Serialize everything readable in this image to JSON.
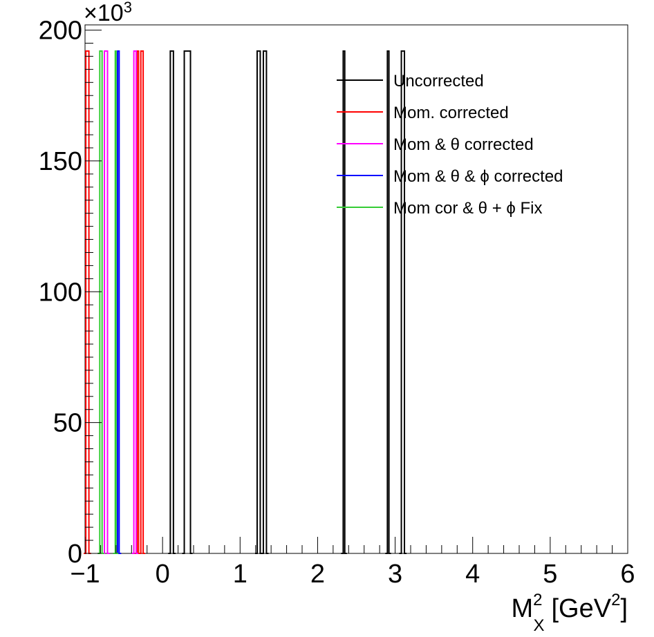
{
  "chart_data": {
    "type": "histogram",
    "title": "",
    "xlabel": {
      "main": "M",
      "sup": "2",
      "sub": "X",
      "unit_open": "[GeV",
      "unit_sup": "2",
      "unit_close": "]"
    },
    "ylabel": "",
    "y_multiplier": {
      "base": "×10",
      "exp": "3"
    },
    "xlim": [
      -1,
      6
    ],
    "ylim": [
      0,
      202
    ],
    "x_ticks": [
      -1,
      0,
      1,
      2,
      3,
      4,
      5,
      6
    ],
    "x_tick_labels": [
      "−1",
      "0",
      "1",
      "2",
      "3",
      "4",
      "5",
      "6"
    ],
    "y_ticks": [
      0,
      50,
      100,
      150,
      200
    ],
    "y_tick_labels": [
      "0",
      "50",
      "100",
      "150",
      "200"
    ],
    "legend_position": "top-right",
    "series": [
      {
        "name": "Uncorrected",
        "color": "#000000",
        "spikes": [
          [
            0.1,
            0.14,
            192
          ],
          [
            0.28,
            0.36,
            192
          ],
          [
            1.22,
            1.26,
            192
          ],
          [
            1.3,
            1.34,
            192
          ],
          [
            2.33,
            2.35,
            192
          ],
          [
            2.9,
            2.92,
            192
          ],
          [
            3.08,
            3.12,
            192
          ]
        ]
      },
      {
        "name": "Mom. corrected",
        "color": "#ff0000",
        "spikes": [
          [
            -0.99,
            -0.95,
            192
          ],
          [
            -0.33,
            -0.31,
            192
          ],
          [
            -0.28,
            -0.25,
            192
          ]
        ]
      },
      {
        "name": "Mom & θ corrected",
        "color": "#ff00ff",
        "spikes": [
          [
            -0.75,
            -0.71,
            192
          ],
          [
            -0.37,
            -0.34,
            192
          ]
        ]
      },
      {
        "name": "Mom & θ & ϕ corrected",
        "color": "#0000ff",
        "spikes": [
          [
            -0.58,
            -0.56,
            192
          ]
        ]
      },
      {
        "name": "Mom cor & θ + ϕ Fix",
        "color": "#33cc33",
        "spikes": [
          [
            -0.81,
            -0.78,
            192
          ],
          [
            -0.61,
            -0.6,
            192
          ]
        ]
      }
    ]
  }
}
